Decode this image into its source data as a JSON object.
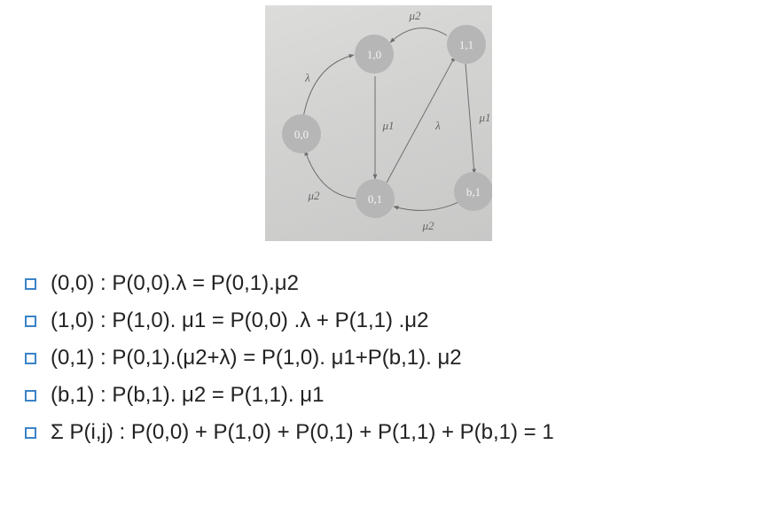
{
  "diagram": {
    "nodes": [
      {
        "id": "n00",
        "label": "0,0"
      },
      {
        "id": "n10",
        "label": "1,0"
      },
      {
        "id": "n11",
        "label": "1,1"
      },
      {
        "id": "n01",
        "label": "0,1"
      },
      {
        "id": "nb1",
        "label": "b,1"
      }
    ],
    "edges": [
      {
        "from": "1,1",
        "to": "1,0",
        "label": "μ2"
      },
      {
        "from": "0,0",
        "to": "1,0",
        "label": "λ"
      },
      {
        "from": "1,0",
        "to": "0,1",
        "label": "μ1"
      },
      {
        "from": "0,1",
        "to": "1,1",
        "label": "λ"
      },
      {
        "from": "1,1",
        "to": "b,1",
        "label": "μ1"
      },
      {
        "from": "0,1",
        "to": "0,0",
        "label": "μ2"
      },
      {
        "from": "b,1",
        "to": "0,1",
        "label": "μ2"
      }
    ],
    "colors": {
      "node": "#b6b6b6",
      "edge": "#6e6e6e",
      "background": "#d3d3d2"
    }
  },
  "equations": [
    "(0,0) : P(0,0).λ = P(0,1).μ2",
    "(1,0) : P(1,0). μ1 = P(0,0) .λ + P(1,1) .μ2",
    "(0,1) : P(0,1).(μ2+λ) = P(1,0). μ1+P(b,1). μ2",
    "(b,1) : P(b,1). μ2 = P(1,1). μ1",
    "Σ P(i,j) : P(0,0) + P(1,0) + P(0,1) + P(1,1) + P(b,1) = 1"
  ],
  "bullet_color": "#3a83c7"
}
